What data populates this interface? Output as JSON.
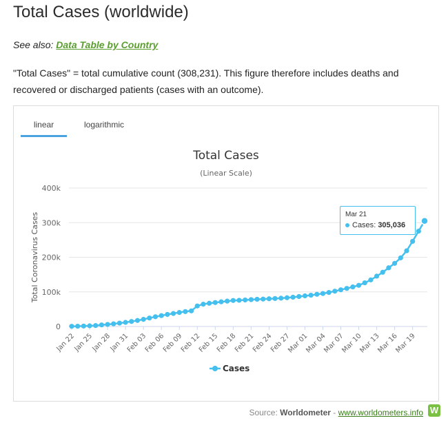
{
  "header": {
    "title": "Total Cases (worldwide)"
  },
  "see_also": {
    "prefix": "See also:",
    "link_label": "Data Table by Country"
  },
  "description": "\"Total Cases\" = total cumulative count (308,231). This figure therefore includes deaths and recovered or discharged patients (cases with an outcome).",
  "tabs": [
    {
      "label": "linear",
      "active": true
    },
    {
      "label": "logarithmic",
      "active": false
    }
  ],
  "tooltip": {
    "date": "Mar 21",
    "series": "Cases",
    "value": "305,036"
  },
  "source": {
    "label": "Source:",
    "name": "Worldometer",
    "separator": "-",
    "url_text": "www.worldometers.info",
    "logo_letter": "W"
  },
  "colors": {
    "series": "#45c0ee",
    "link_green": "#5a9e2f",
    "logo_green": "#7ac143"
  },
  "chart_data": {
    "type": "line",
    "title": "Total Cases",
    "subtitle": "(Linear Scale)",
    "ylabel": "Total Coronavirus Cases",
    "ylim": [
      0,
      400000
    ],
    "yticks": [
      0,
      100000,
      200000,
      300000,
      400000
    ],
    "ytick_labels": [
      "0",
      "100k",
      "200k",
      "300k",
      "400k"
    ],
    "xtick_labels": [
      "Jan 22",
      "Jan 25",
      "Jan 28",
      "Jan 31",
      "Feb 03",
      "Feb 06",
      "Feb 09",
      "Feb 12",
      "Feb 15",
      "Feb 18",
      "Feb 21",
      "Feb 24",
      "Feb 27",
      "Mar 01",
      "Mar 04",
      "Mar 07",
      "Mar 10",
      "Mar 13",
      "Mar 16",
      "Mar 19"
    ],
    "legend": "bottom-center",
    "grid": true,
    "series": [
      {
        "name": "Cases",
        "values": [
          580,
          845,
          1317,
          2015,
          2800,
          4581,
          6058,
          7813,
          9823,
          11950,
          14553,
          17391,
          20630,
          24545,
          28266,
          31439,
          34876,
          37552,
          40553,
          43099,
          45134,
          59287,
          64438,
          67100,
          69197,
          71329,
          73332,
          75184,
          75700,
          76677,
          77673,
          78651,
          79205,
          80087,
          80828,
          81820,
          83112,
          84615,
          86604,
          88585,
          90443,
          93016,
          95314,
          98425,
          102050,
          106099,
          109991,
          114381,
          118948,
          126214,
          134576,
          145483,
          156653,
          169593,
          182490,
          198234,
          218815,
          246088,
          275469,
          305036
        ]
      }
    ]
  }
}
